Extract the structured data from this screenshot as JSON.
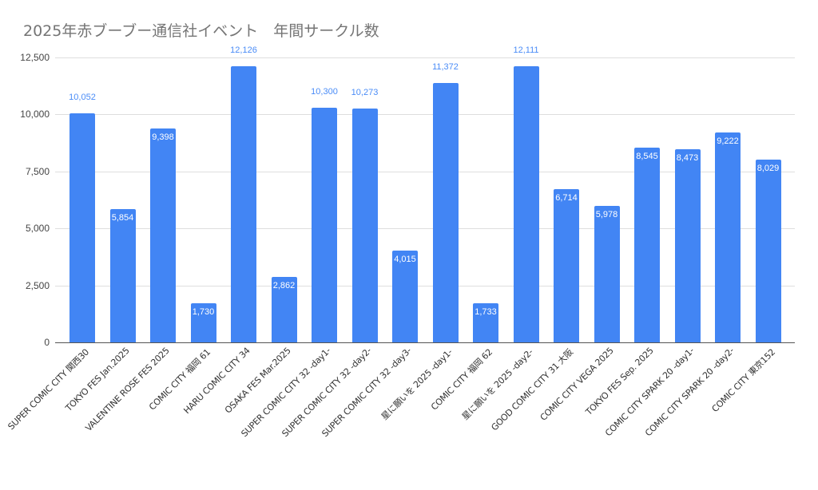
{
  "chart_data": {
    "type": "bar",
    "title": "2025年赤ブーブー通信社イベント　年間サークル数",
    "xlabel": "",
    "ylabel": "",
    "ylim": [
      0,
      12500
    ],
    "yticks": [
      "0",
      "2,500",
      "5,000",
      "7,500",
      "10,000",
      "12,500"
    ],
    "ytick_values": [
      0,
      2500,
      5000,
      7500,
      10000,
      12500
    ],
    "grid": true,
    "legend": "none",
    "bar_color": "#4285f4",
    "categories": [
      "SUPER COMIC CITY 関西30",
      "TOKYO FES Jan.2025",
      "VALENTINE ROSE FES 2025",
      "COMIC CITY 福岡 61",
      "HARU COMIC CITY 34",
      "OSAKA FES Mar.2025",
      "SUPER COMIC CITY 32 -day1-",
      "SUPER COMIC CITY 32 -day2-",
      "SUPER COMIC CITY 32 -day3-",
      "星に願いを 2025 -day1-",
      "COMIC CITY 福岡 62",
      "星に願いを 2025 -day2-",
      "GOOD COMIC CITY 31 大阪",
      "COMIC CITY VEGA 2025",
      "TOKYO FES Sep. 2025",
      "COMIC CITY SPARK 20 -day1-",
      "COMIC CITY SPARK 20 -day2-",
      "COMIC CITY 東京152"
    ],
    "values": [
      10052,
      5854,
      9398,
      1730,
      12126,
      2862,
      10300,
      10273,
      4015,
      11372,
      1733,
      12111,
      6714,
      5978,
      8545,
      8473,
      9222,
      8029
    ],
    "value_labels": [
      "10,052",
      "5,854",
      "9,398",
      "1,730",
      "12,126",
      "2,862",
      "10,300",
      "10,273",
      "4,015",
      "11,372",
      "1,733",
      "12,111",
      "6,714",
      "5,978",
      "8,545",
      "8,473",
      "9,222",
      "8,029"
    ]
  }
}
